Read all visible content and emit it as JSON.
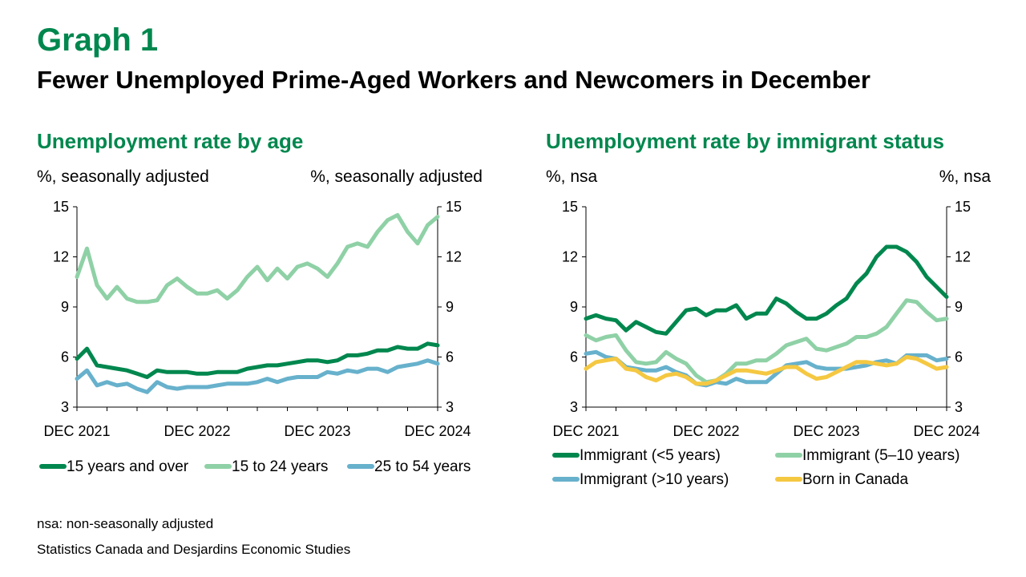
{
  "header": {
    "graph_number": "Graph 1",
    "title": "Fewer Unemployed Prime-Aged Workers and Newcomers in December"
  },
  "footer": {
    "note": "nsa: non-seasonally adjusted",
    "source": "Statistics Canada and Desjardins Economic Studies"
  },
  "colors": {
    "title_green": "#00874e",
    "dark_green": "#00874e",
    "light_green": "#8fd1a6",
    "blue": "#67b1cc",
    "yellow": "#f5c842",
    "axis": "#000000"
  },
  "chart_data": [
    {
      "type": "line",
      "title": "Unemployment rate by age",
      "ylabel_left": "%, seasonally adjusted",
      "ylabel_right": "%, seasonally adjusted",
      "ylim": [
        3,
        15
      ],
      "yticks": [
        3,
        6,
        9,
        12,
        15
      ],
      "x_tick_labels": [
        "DEC 2021",
        "DEC 2022",
        "DEC 2023",
        "DEC 2024"
      ],
      "x_tick_index": [
        0,
        12,
        24,
        36
      ],
      "grid": false,
      "legend_position": "bottom",
      "series": [
        {
          "name": "15 years and over",
          "color": "#00874e",
          "values": [
            5.9,
            6.5,
            5.5,
            5.4,
            5.3,
            5.2,
            5.0,
            4.8,
            5.2,
            5.1,
            5.1,
            5.1,
            5.0,
            5.0,
            5.1,
            5.1,
            5.1,
            5.3,
            5.4,
            5.5,
            5.5,
            5.6,
            5.7,
            5.8,
            5.8,
            5.7,
            5.8,
            6.1,
            6.1,
            6.2,
            6.4,
            6.4,
            6.6,
            6.5,
            6.5,
            6.8,
            6.7
          ]
        },
        {
          "name": "15 to 24 years",
          "color": "#8fd1a6",
          "values": [
            10.8,
            12.5,
            10.3,
            9.5,
            10.2,
            9.5,
            9.3,
            9.3,
            9.4,
            10.3,
            10.7,
            10.2,
            9.8,
            9.8,
            10.0,
            9.5,
            10.0,
            10.8,
            11.4,
            10.6,
            11.3,
            10.7,
            11.4,
            11.6,
            11.3,
            10.8,
            11.6,
            12.6,
            12.8,
            12.6,
            13.5,
            14.2,
            14.5,
            13.5,
            12.8,
            13.9,
            14.4
          ]
        },
        {
          "name": "25 to 54 years",
          "color": "#67b1cc",
          "values": [
            4.7,
            5.2,
            4.3,
            4.5,
            4.3,
            4.4,
            4.1,
            3.9,
            4.5,
            4.2,
            4.1,
            4.2,
            4.2,
            4.2,
            4.3,
            4.4,
            4.4,
            4.4,
            4.5,
            4.7,
            4.5,
            4.7,
            4.8,
            4.8,
            4.8,
            5.1,
            5.0,
            5.2,
            5.1,
            5.3,
            5.3,
            5.1,
            5.4,
            5.5,
            5.6,
            5.8,
            5.6
          ]
        }
      ]
    },
    {
      "type": "line",
      "title": "Unemployment rate by immigrant status",
      "ylabel_left": "%, nsa",
      "ylabel_right": "%, nsa",
      "ylim": [
        3,
        15
      ],
      "yticks": [
        3,
        6,
        9,
        12,
        15
      ],
      "x_tick_labels": [
        "DEC 2021",
        "DEC 2022",
        "DEC 2023",
        "DEC 2024"
      ],
      "x_tick_index": [
        0,
        12,
        24,
        36
      ],
      "grid": false,
      "legend_position": "bottom",
      "series": [
        {
          "name": "Immigrant (<5 years)",
          "color": "#00874e",
          "values": [
            8.3,
            8.5,
            8.3,
            8.2,
            7.6,
            8.1,
            7.8,
            7.5,
            7.4,
            8.1,
            8.8,
            8.9,
            8.5,
            8.8,
            8.8,
            9.1,
            8.3,
            8.6,
            8.6,
            9.5,
            9.2,
            8.7,
            8.3,
            8.3,
            8.6,
            9.1,
            9.5,
            10.4,
            11.0,
            12.0,
            12.6,
            12.6,
            12.3,
            11.7,
            10.8,
            10.2,
            9.6
          ]
        },
        {
          "name": "Immigrant (5–10 years)",
          "color": "#8fd1a6",
          "values": [
            7.3,
            7.0,
            7.2,
            7.3,
            6.4,
            5.7,
            5.6,
            5.7,
            6.3,
            5.9,
            5.6,
            4.9,
            4.5,
            4.6,
            5.0,
            5.6,
            5.6,
            5.8,
            5.8,
            6.2,
            6.7,
            6.9,
            7.1,
            6.5,
            6.4,
            6.6,
            6.8,
            7.2,
            7.2,
            7.4,
            7.8,
            8.6,
            9.4,
            9.3,
            8.7,
            8.2,
            8.3
          ]
        },
        {
          "name": "Immigrant (>10 years)",
          "color": "#67b1cc",
          "values": [
            6.2,
            6.3,
            6.0,
            5.9,
            5.4,
            5.3,
            5.2,
            5.2,
            5.4,
            5.1,
            4.9,
            4.4,
            4.3,
            4.5,
            4.4,
            4.7,
            4.5,
            4.5,
            4.5,
            5.0,
            5.5,
            5.6,
            5.7,
            5.4,
            5.3,
            5.3,
            5.3,
            5.4,
            5.5,
            5.7,
            5.8,
            5.6,
            6.1,
            6.1,
            6.1,
            5.8,
            5.9
          ]
        },
        {
          "name": "Born in Canada",
          "color": "#f5c842",
          "values": [
            5.3,
            5.7,
            5.8,
            5.9,
            5.3,
            5.2,
            4.8,
            4.6,
            4.9,
            5.0,
            4.8,
            4.4,
            4.4,
            4.6,
            4.9,
            5.2,
            5.2,
            5.1,
            5.0,
            5.2,
            5.4,
            5.4,
            5.0,
            4.7,
            4.8,
            5.1,
            5.4,
            5.7,
            5.7,
            5.6,
            5.5,
            5.6,
            6.0,
            5.9,
            5.6,
            5.3,
            5.4
          ]
        }
      ]
    }
  ]
}
